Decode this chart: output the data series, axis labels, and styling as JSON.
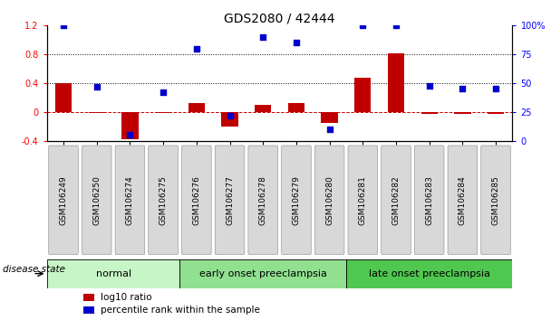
{
  "title": "GDS2080 / 42444",
  "samples": [
    "GSM106249",
    "GSM106250",
    "GSM106274",
    "GSM106275",
    "GSM106276",
    "GSM106277",
    "GSM106278",
    "GSM106279",
    "GSM106280",
    "GSM106281",
    "GSM106282",
    "GSM106283",
    "GSM106284",
    "GSM106285"
  ],
  "log10_ratio": [
    0.4,
    -0.02,
    -0.38,
    -0.02,
    0.12,
    -0.2,
    0.1,
    0.12,
    -0.15,
    0.47,
    0.82,
    -0.03,
    -0.03,
    -0.03
  ],
  "percentile_rank": [
    100,
    47,
    5,
    42,
    80,
    22,
    90,
    85,
    10,
    100,
    100,
    48,
    45,
    45
  ],
  "groups": [
    {
      "label": "normal",
      "start": 0,
      "end": 3,
      "color": "#c8f5c8"
    },
    {
      "label": "early onset preeclampsia",
      "start": 4,
      "end": 8,
      "color": "#90e090"
    },
    {
      "label": "late onset preeclampsia",
      "start": 9,
      "end": 13,
      "color": "#50c850"
    }
  ],
  "ylim_left": [
    -0.4,
    1.2
  ],
  "ylim_right": [
    0,
    100
  ],
  "yticks_left": [
    -0.4,
    0.0,
    0.4,
    0.8,
    1.2
  ],
  "ytick_labels_left": [
    "-0.4",
    "0",
    "0.4",
    "0.8",
    "1.2"
  ],
  "yticks_right": [
    0,
    25,
    50,
    75,
    100
  ],
  "ytick_labels_right": [
    "0",
    "25",
    "50",
    "75",
    "100%"
  ],
  "hlines": [
    0.4,
    0.8
  ],
  "bar_color_red": "#c00000",
  "bar_color_blue": "#0000cc",
  "zero_line_color": "#cc0000",
  "background_color": "#ffffff",
  "legend_red_label": "log10 ratio",
  "legend_blue_label": "percentile rank within the sample",
  "disease_state_label": "disease state",
  "bar_width": 0.5,
  "blue_marker_size": 22,
  "title_fontsize": 10,
  "axis_fontsize": 7,
  "sample_fontsize": 6.5,
  "group_label_fontsize": 8,
  "legend_fontsize": 7.5,
  "disease_fontsize": 7.5
}
